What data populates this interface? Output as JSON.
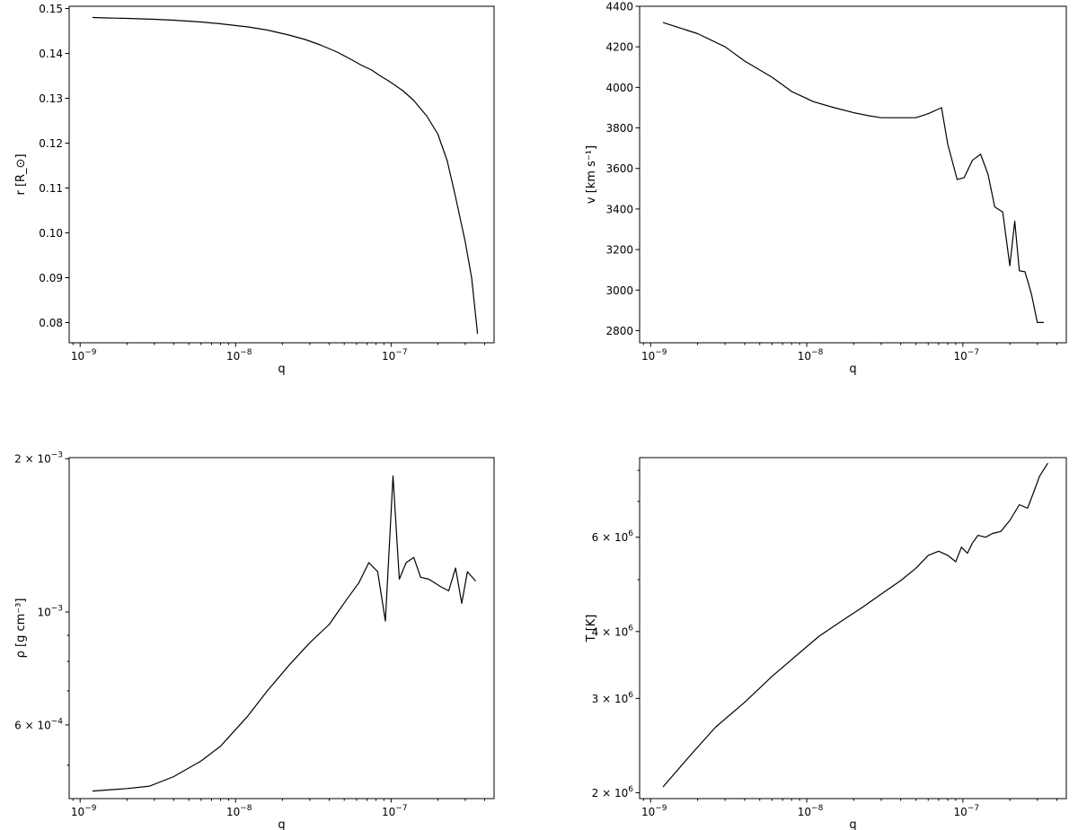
{
  "chart_data": [
    {
      "type": "line",
      "xlabel": "q",
      "ylabel": "r [R_⊙]",
      "xscale": "log",
      "yscale": "linear",
      "xlim": [
        8.5e-10,
        4.6e-07
      ],
      "ylim": [
        0.0755,
        0.1505
      ],
      "xticks": [
        {
          "value": 1e-09,
          "base": "10",
          "exp": "−9"
        },
        {
          "value": 1e-08,
          "base": "10",
          "exp": "−8"
        },
        {
          "value": 1e-07,
          "base": "10",
          "exp": "−7"
        }
      ],
      "yticks": [
        {
          "value": 0.08,
          "text": "0.08"
        },
        {
          "value": 0.09,
          "text": "0.09"
        },
        {
          "value": 0.1,
          "text": "0.10"
        },
        {
          "value": 0.11,
          "text": "0.11"
        },
        {
          "value": 0.12,
          "text": "0.12"
        },
        {
          "value": 0.13,
          "text": "0.13"
        },
        {
          "value": 0.14,
          "text": "0.14"
        },
        {
          "value": 0.15,
          "text": "0.15"
        }
      ],
      "series": [
        {
          "x": [
            1.2e-09,
            1.5e-09,
            2e-09,
            3e-09,
            4e-09,
            6e-09,
            8e-09,
            1.2e-08,
            1.6e-08,
            2.2e-08,
            2.8e-08,
            3.5e-08,
            4.5e-08,
            5.5e-08,
            6.5e-08,
            7.5e-08,
            8.5e-08,
            9.5e-08,
            1.05e-07,
            1.2e-07,
            1.4e-07,
            1.7e-07,
            2e-07,
            2.3e-07,
            2.6e-07,
            3e-07,
            3.3e-07,
            3.6e-07
          ],
          "y": [
            0.148,
            0.1479,
            0.1478,
            0.1476,
            0.1474,
            0.147,
            0.1466,
            0.1459,
            0.1452,
            0.1441,
            0.1431,
            0.1419,
            0.1403,
            0.1387,
            0.1373,
            0.1363,
            0.135,
            0.134,
            0.133,
            0.1316,
            0.1295,
            0.126,
            0.122,
            0.116,
            0.108,
            0.098,
            0.09,
            0.0775
          ]
        }
      ]
    },
    {
      "type": "line",
      "xlabel": "q",
      "ylabel": "v [km s⁻¹]",
      "xscale": "log",
      "yscale": "linear",
      "xlim": [
        8.5e-10,
        4.6e-07
      ],
      "ylim": [
        2740,
        4400
      ],
      "xticks": [
        {
          "value": 1e-09,
          "base": "10",
          "exp": "−9"
        },
        {
          "value": 1e-08,
          "base": "10",
          "exp": "−8"
        },
        {
          "value": 1e-07,
          "base": "10",
          "exp": "−7"
        }
      ],
      "yticks": [
        {
          "value": 2800,
          "text": "2800"
        },
        {
          "value": 3000,
          "text": "3000"
        },
        {
          "value": 3200,
          "text": "3200"
        },
        {
          "value": 3400,
          "text": "3400"
        },
        {
          "value": 3600,
          "text": "3600"
        },
        {
          "value": 3800,
          "text": "3800"
        },
        {
          "value": 4000,
          "text": "4000"
        },
        {
          "value": 4200,
          "text": "4200"
        },
        {
          "value": 4400,
          "text": "4400"
        }
      ],
      "series": [
        {
          "x": [
            1.2e-09,
            2e-09,
            3e-09,
            4e-09,
            6e-09,
            8e-09,
            1.1e-08,
            1.5e-08,
            2e-08,
            2.5e-08,
            3e-08,
            4e-08,
            5e-08,
            6e-08,
            7.3e-08,
            8e-08,
            9.2e-08,
            1.02e-07,
            1.15e-07,
            1.3e-07,
            1.45e-07,
            1.6e-07,
            1.8e-07,
            2e-07,
            2.15e-07,
            2.3e-07,
            2.5e-07,
            2.75e-07,
            3e-07,
            3.3e-07
          ],
          "y": [
            4320,
            4265,
            4200,
            4130,
            4050,
            3980,
            3930,
            3900,
            3875,
            3860,
            3850,
            3850,
            3850,
            3870,
            3900,
            3720,
            3545,
            3555,
            3640,
            3670,
            3570,
            3410,
            3385,
            3120,
            3340,
            3095,
            3090,
            2980,
            2840,
            2840
          ]
        }
      ]
    },
    {
      "type": "line",
      "xlabel": "q",
      "ylabel": "ρ [g cm⁻³]",
      "xscale": "log",
      "yscale": "log",
      "xlim": [
        8.5e-10,
        4.6e-07
      ],
      "ylim": [
        0.00043,
        0.00201
      ],
      "xticks": [
        {
          "value": 1e-09,
          "base": "10",
          "exp": "−9"
        },
        {
          "value": 1e-08,
          "base": "10",
          "exp": "−8"
        },
        {
          "value": 1e-07,
          "base": "10",
          "exp": "−7"
        }
      ],
      "yticks": [
        {
          "value": 0.0006,
          "base": "6 × 10",
          "exp": "−4"
        },
        {
          "value": 0.001,
          "base": "10",
          "exp": "−3"
        },
        {
          "value": 0.002,
          "base": "2 × 10",
          "exp": "−3"
        }
      ],
      "series": [
        {
          "x": [
            1.2e-09,
            2e-09,
            2.8e-09,
            4e-09,
            6e-09,
            8e-09,
            1.2e-08,
            1.6e-08,
            2.2e-08,
            3e-08,
            4e-08,
            5.2e-08,
            6.2e-08,
            7.2e-08,
            8.2e-08,
            9.2e-08,
            1.03e-07,
            1.13e-07,
            1.25e-07,
            1.4e-07,
            1.55e-07,
            1.75e-07,
            2.1e-07,
            2.35e-07,
            2.6e-07,
            2.85e-07,
            3.1e-07,
            3.5e-07
          ],
          "y": [
            0.000445,
            0.00045,
            0.000455,
            0.000475,
            0.00051,
            0.000545,
            0.000625,
            0.0007,
            0.000785,
            0.00087,
            0.000945,
            0.00106,
            0.00114,
            0.00125,
            0.0012,
            0.00096,
            0.00185,
            0.00116,
            0.00125,
            0.00128,
            0.00117,
            0.00116,
            0.00112,
            0.0011,
            0.00122,
            0.00104,
            0.0012,
            0.00115
          ]
        }
      ]
    },
    {
      "type": "line",
      "xlabel": "q",
      "ylabel": "T [K]",
      "xscale": "log",
      "yscale": "log",
      "xlim": [
        8.5e-10,
        4.6e-07
      ],
      "ylim": [
        1950000,
        8450000
      ],
      "xticks": [
        {
          "value": 1e-09,
          "base": "10",
          "exp": "−9"
        },
        {
          "value": 1e-08,
          "base": "10",
          "exp": "−8"
        },
        {
          "value": 1e-07,
          "base": "10",
          "exp": "−7"
        }
      ],
      "yticks": [
        {
          "value": 2000000,
          "base": "2 × 10",
          "exp": "6"
        },
        {
          "value": 3000000,
          "base": "3 × 10",
          "exp": "6"
        },
        {
          "value": 4000000,
          "base": "4 × 10",
          "exp": "6"
        },
        {
          "value": 6000000,
          "base": "6 × 10",
          "exp": "6"
        }
      ],
      "series": [
        {
          "x": [
            1.2e-09,
            1.8e-09,
            2.6e-09,
            4e-09,
            6e-09,
            9e-09,
            1.2e-08,
            1.7e-08,
            2.3e-08,
            3e-08,
            4e-08,
            5e-08,
            6e-08,
            7e-08,
            8e-08,
            9e-08,
            9.8e-08,
            1.07e-07,
            1.15e-07,
            1.25e-07,
            1.4e-07,
            1.55e-07,
            1.75e-07,
            2e-07,
            2.3e-07,
            2.6e-07,
            2.85e-07,
            3.1e-07,
            3.5e-07
          ],
          "y": [
            2050000,
            2350000,
            2650000,
            2950000,
            3300000,
            3650000,
            3920000,
            4200000,
            4450000,
            4700000,
            4980000,
            5250000,
            5550000,
            5650000,
            5550000,
            5400000,
            5750000,
            5600000,
            5850000,
            6050000,
            6000000,
            6100000,
            6150000,
            6450000,
            6900000,
            6800000,
            7300000,
            7800000,
            8250000
          ]
        }
      ]
    }
  ]
}
